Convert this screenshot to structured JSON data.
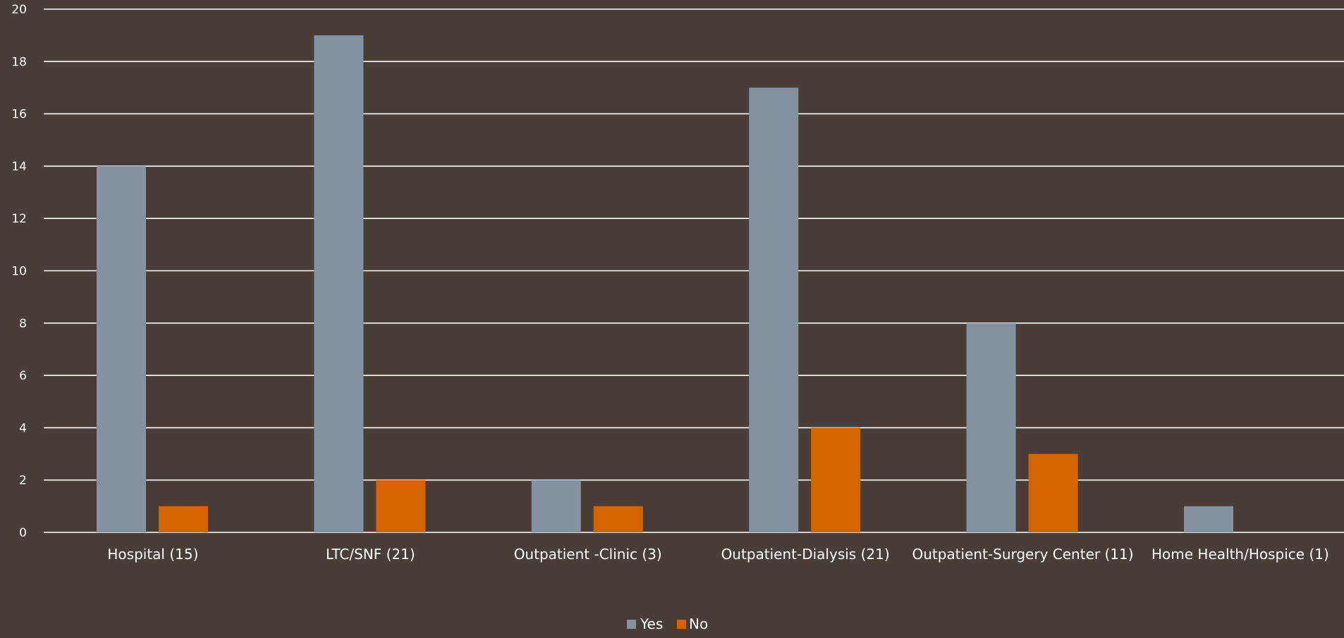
{
  "chart_data": {
    "type": "bar",
    "title": "",
    "xlabel": "",
    "ylabel": "",
    "categories": [
      "Hospital (15)",
      "LTC/SNF (21)",
      "Outpatient -Clinic (3)",
      "Outpatient-Dialysis (21)",
      "Outpatient-Surgery Center (11)",
      "Home Health/Hospice (1)"
    ],
    "series": [
      {
        "name": "Yes",
        "color": "#8391a1",
        "values": [
          14,
          19,
          2,
          17,
          8,
          1
        ]
      },
      {
        "name": "No",
        "color": "#d46400",
        "values": [
          1,
          2,
          1,
          4,
          3,
          0
        ]
      }
    ],
    "ylim": [
      0,
      20
    ],
    "yticks": [
      "0",
      "2",
      "4",
      "6",
      "8",
      "10",
      "12",
      "14",
      "16",
      "18",
      "20"
    ],
    "grid": true,
    "legend_position": "bottom"
  }
}
